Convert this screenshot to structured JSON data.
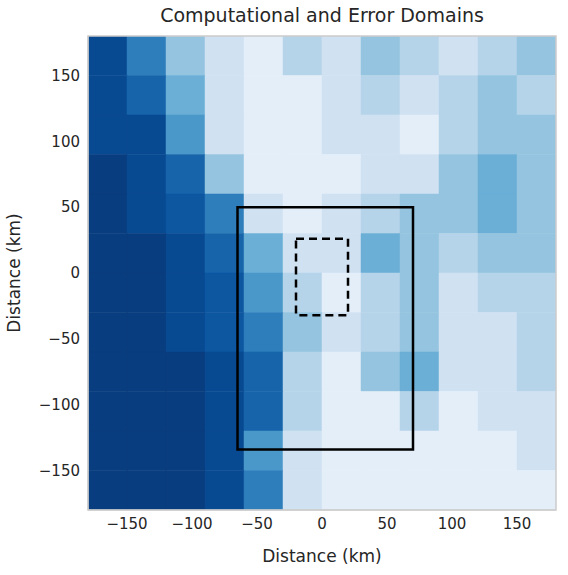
{
  "chart_data": {
    "type": "heatmap",
    "title": "Computational and Error Domains",
    "x_label": "Distance (km)",
    "y_label": "Distance (km)",
    "xlim": [
      -180,
      180
    ],
    "ylim": [
      -180,
      180
    ],
    "xticks": [
      {
        "value": -150,
        "label": "−150"
      },
      {
        "value": -100,
        "label": "−100"
      },
      {
        "value": -50,
        "label": "−50"
      },
      0,
      50,
      100,
      150
    ],
    "yticks": [
      {
        "value": -150,
        "label": "−150"
      },
      {
        "value": -100,
        "label": "−100"
      },
      {
        "value": -50,
        "label": "−50"
      },
      0,
      50,
      100,
      150
    ],
    "grid": false,
    "tick_labels": true,
    "cells": {
      "x_edges": [
        -180,
        -150,
        -120,
        -90,
        -60,
        -30,
        0,
        30,
        60,
        90,
        120,
        150,
        180
      ],
      "y_edges": [
        180,
        150,
        120,
        90,
        60,
        30,
        0,
        -30,
        -60,
        -90,
        -120,
        -150,
        -180
      ],
      "zlim": [
        0,
        1
      ],
      "values": [
        [
          0.1,
          0.3,
          0.6,
          0.8,
          0.9,
          0.7,
          0.8,
          0.6,
          0.7,
          0.8,
          0.7,
          0.6
        ],
        [
          0.1,
          0.2,
          0.5,
          0.8,
          0.9,
          0.9,
          0.8,
          0.7,
          0.8,
          0.7,
          0.6,
          0.7
        ],
        [
          0.1,
          0.1,
          0.4,
          0.8,
          0.9,
          0.9,
          0.8,
          0.8,
          0.9,
          0.7,
          0.6,
          0.6
        ],
        [
          0.05,
          0.1,
          0.2,
          0.6,
          0.9,
          0.9,
          0.9,
          0.8,
          0.8,
          0.6,
          0.5,
          0.6
        ],
        [
          0.05,
          0.1,
          0.15,
          0.3,
          0.8,
          0.9,
          0.8,
          0.7,
          0.6,
          0.6,
          0.5,
          0.6
        ],
        [
          0.05,
          0.05,
          0.1,
          0.2,
          0.5,
          0.8,
          0.8,
          0.5,
          0.6,
          0.7,
          0.6,
          0.6
        ],
        [
          0.05,
          0.05,
          0.1,
          0.15,
          0.4,
          0.7,
          0.9,
          0.7,
          0.6,
          0.8,
          0.7,
          0.7
        ],
        [
          0.05,
          0.05,
          0.1,
          0.15,
          0.3,
          0.6,
          0.8,
          0.7,
          0.6,
          0.8,
          0.8,
          0.7
        ],
        [
          0.05,
          0.05,
          0.05,
          0.1,
          0.2,
          0.7,
          0.9,
          0.6,
          0.5,
          0.8,
          0.8,
          0.7
        ],
        [
          0.05,
          0.05,
          0.05,
          0.1,
          0.2,
          0.7,
          0.9,
          0.9,
          0.7,
          0.9,
          0.8,
          0.8
        ],
        [
          0.05,
          0.05,
          0.05,
          0.1,
          0.4,
          0.8,
          0.9,
          0.9,
          0.9,
          0.9,
          0.9,
          0.8
        ],
        [
          0.05,
          0.05,
          0.05,
          0.1,
          0.3,
          0.8,
          0.9,
          0.9,
          0.9,
          0.9,
          0.9,
          0.9
        ]
      ]
    },
    "rectangles": [
      {
        "x": [
          -65,
          70
        ],
        "y": [
          -134,
          50
        ],
        "line_style": "solid",
        "color": "#000000"
      },
      {
        "x": [
          -20,
          20
        ],
        "y": [
          -32,
          26
        ],
        "line_style": "dashed",
        "color": "#000000"
      }
    ]
  }
}
